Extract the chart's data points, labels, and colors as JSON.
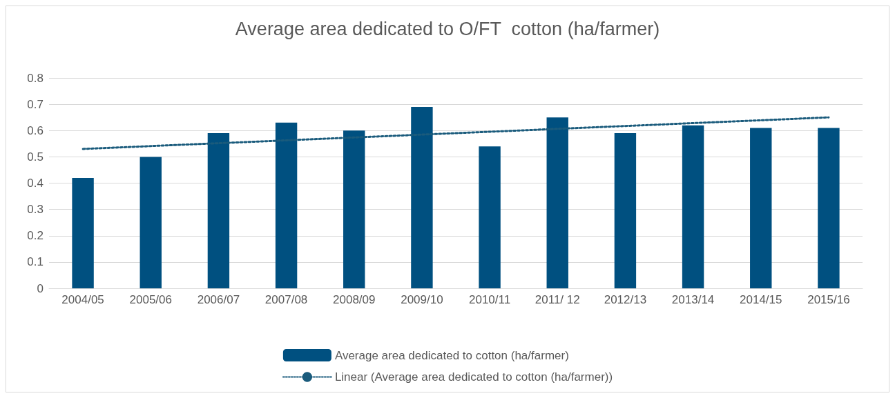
{
  "chart_data": {
    "type": "bar",
    "title": "Average area dedicated to O/FT  cotton (ha/farmer)",
    "categories": [
      "2004/05",
      "2005/06",
      "2006/07",
      "2007/08",
      "2008/09",
      "2009/10",
      "2010/11",
      "2011/ 12",
      "2012/13",
      "2013/14",
      "2014/15",
      "2015/16"
    ],
    "series": [
      {
        "name": "Average area dedicated to cotton (ha/farmer)",
        "color": "#005080",
        "values": [
          0.42,
          0.5,
          0.59,
          0.63,
          0.6,
          0.69,
          0.54,
          0.65,
          0.59,
          0.62,
          0.61,
          0.61
        ]
      },
      {
        "name": "Linear (Average area dedicated to cotton (ha/farmer))",
        "type": "line",
        "line_style": "dotted",
        "color": "#1a5b7c",
        "x": [
          "2004/05",
          "2015/16"
        ],
        "values": [
          0.53,
          0.65
        ]
      }
    ],
    "ylim": [
      0,
      0.8
    ],
    "yticks": [
      0,
      0.1,
      0.2,
      0.3,
      0.4,
      0.5,
      0.6,
      0.7,
      0.8
    ],
    "grid": "y",
    "legend": "bottom"
  }
}
